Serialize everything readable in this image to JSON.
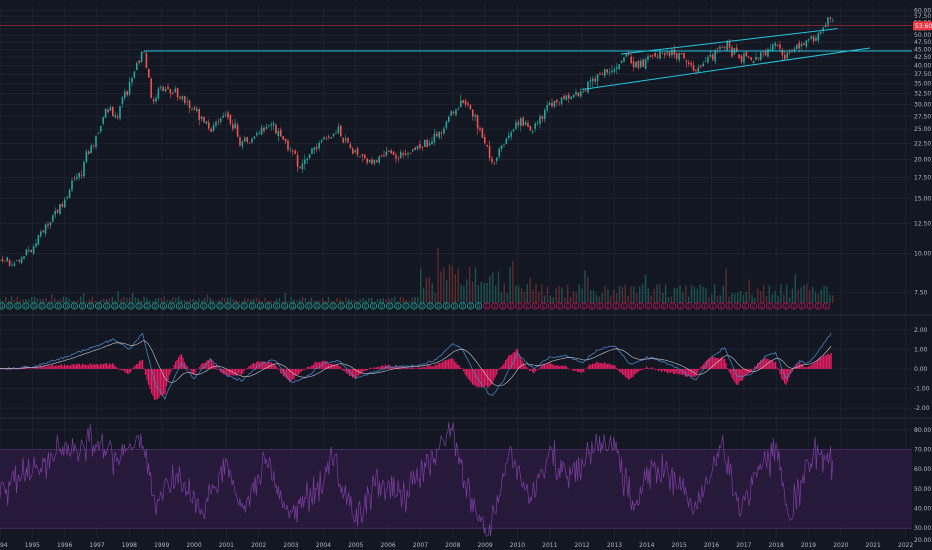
{
  "chart_data": [
    {
      "type": "candlestick",
      "panel": "price",
      "title": "",
      "xlabel": "",
      "ylabel": "",
      "y_scale": "log",
      "ylim": [
        6.5,
        62
      ],
      "y_ticks": [
        "7.50",
        "10.00",
        "12.50",
        "15.00",
        "17.50",
        "20.00",
        "22.50",
        "25.00",
        "27.50",
        "30.00",
        "32.50",
        "35.00",
        "37.50",
        "40.00",
        "42.50",
        "45.00",
        "47.50",
        "50.00",
        "52.50",
        "55.00",
        "57.50",
        "60.00"
      ],
      "last_price_label": "53.60",
      "xlim": [
        1994.0,
        2022.2
      ],
      "x_ticks": [
        "1994",
        "1995",
        "1996",
        "1997",
        "1998",
        "1999",
        "2000",
        "2001",
        "2002",
        "2003",
        "2004",
        "2005",
        "2006",
        "2007",
        "2008",
        "2009",
        "2010",
        "2011",
        "2012",
        "2013",
        "2014",
        "2015",
        "2016",
        "2017",
        "2018",
        "2019",
        "2020",
        "2021",
        "2022"
      ],
      "price_path": [
        {
          "x": 1994.0,
          "y": 9.6
        },
        {
          "x": 1994.5,
          "y": 9.3
        },
        {
          "x": 1995.0,
          "y": 10.4
        },
        {
          "x": 1995.5,
          "y": 12.2
        },
        {
          "x": 1996.0,
          "y": 15.0
        },
        {
          "x": 1996.5,
          "y": 18.5
        },
        {
          "x": 1997.0,
          "y": 24.0
        },
        {
          "x": 1997.3,
          "y": 29.0
        },
        {
          "x": 1997.6,
          "y": 27.0
        },
        {
          "x": 1998.0,
          "y": 35.0
        },
        {
          "x": 1998.3,
          "y": 41.0
        },
        {
          "x": 1998.45,
          "y": 44.5
        },
        {
          "x": 1998.7,
          "y": 30.0
        },
        {
          "x": 1999.0,
          "y": 34.0
        },
        {
          "x": 1999.5,
          "y": 32.0
        },
        {
          "x": 2000.0,
          "y": 29.0
        },
        {
          "x": 2000.5,
          "y": 25.0
        },
        {
          "x": 2001.0,
          "y": 28.0
        },
        {
          "x": 2001.5,
          "y": 22.5
        },
        {
          "x": 2002.0,
          "y": 24.0
        },
        {
          "x": 2002.4,
          "y": 26.5
        },
        {
          "x": 2003.0,
          "y": 21.0
        },
        {
          "x": 2003.3,
          "y": 19.5
        },
        {
          "x": 2004.0,
          "y": 23.0
        },
        {
          "x": 2004.5,
          "y": 24.5
        },
        {
          "x": 2005.0,
          "y": 20.5
        },
        {
          "x": 2005.5,
          "y": 20.0
        },
        {
          "x": 2006.0,
          "y": 21.0
        },
        {
          "x": 2006.5,
          "y": 20.5
        },
        {
          "x": 2007.0,
          "y": 22.0
        },
        {
          "x": 2007.5,
          "y": 24.0
        },
        {
          "x": 2008.0,
          "y": 28.0
        },
        {
          "x": 2008.3,
          "y": 31.5
        },
        {
          "x": 2008.7,
          "y": 27.0
        },
        {
          "x": 2009.1,
          "y": 21.0
        },
        {
          "x": 2009.3,
          "y": 19.5
        },
        {
          "x": 2009.7,
          "y": 24.0
        },
        {
          "x": 2010.0,
          "y": 27.0
        },
        {
          "x": 2010.5,
          "y": 25.0
        },
        {
          "x": 2011.0,
          "y": 30.0
        },
        {
          "x": 2011.5,
          "y": 31.5
        },
        {
          "x": 2012.0,
          "y": 33.5
        },
        {
          "x": 2012.5,
          "y": 37.5
        },
        {
          "x": 2013.0,
          "y": 39.0
        },
        {
          "x": 2013.3,
          "y": 43.0
        },
        {
          "x": 2013.7,
          "y": 40.0
        },
        {
          "x": 2014.0,
          "y": 42.0
        },
        {
          "x": 2014.5,
          "y": 44.0
        },
        {
          "x": 2015.0,
          "y": 42.5
        },
        {
          "x": 2015.5,
          "y": 39.0
        },
        {
          "x": 2016.0,
          "y": 43.0
        },
        {
          "x": 2016.4,
          "y": 47.0
        },
        {
          "x": 2016.8,
          "y": 43.0
        },
        {
          "x": 2017.2,
          "y": 41.0
        },
        {
          "x": 2017.7,
          "y": 45.0
        },
        {
          "x": 2018.0,
          "y": 47.0
        },
        {
          "x": 2018.3,
          "y": 43.0
        },
        {
          "x": 2018.7,
          "y": 46.0
        },
        {
          "x": 2019.0,
          "y": 48.0
        },
        {
          "x": 2019.2,
          "y": 47.5
        },
        {
          "x": 2019.4,
          "y": 52.0
        },
        {
          "x": 2019.6,
          "y": 57.0
        },
        {
          "x": 2019.75,
          "y": 55.5
        }
      ],
      "lines": [
        {
          "name": "resistance-horizontal",
          "x1": 1998.45,
          "y1": 44.5,
          "x2": 2022.2,
          "y2": 44.5,
          "color": "#26c6da"
        },
        {
          "name": "channel-upper",
          "x1": 2013.2,
          "y1": 43.5,
          "x2": 2019.9,
          "y2": 52.5,
          "color": "#26c6da"
        },
        {
          "name": "channel-lower",
          "x1": 2012.0,
          "y1": 33.5,
          "x2": 2020.9,
          "y2": 45.5,
          "color": "#26c6da"
        },
        {
          "name": "last-price",
          "x1": 1994.0,
          "y1": 53.6,
          "x2": 2022.2,
          "y2": 53.6,
          "color": "#f23645"
        }
      ],
      "volume_marker_letters": {
        "dividend": "D",
        "earnings": "E",
        "switch_year": 2008.9
      },
      "colors": {
        "up": "#26a69a",
        "down": "#ef5350",
        "accent": "#26c6da",
        "price_label": "#f23645"
      }
    },
    {
      "type": "histogram+line",
      "panel": "macd",
      "title": "",
      "ylim": [
        -2.4,
        2.6
      ],
      "y_ticks": [
        "2.00",
        "1.00",
        "0.00",
        "-1.00",
        "-2.00"
      ],
      "macd_line": [
        {
          "x": 1994.0,
          "y": 0.0
        },
        {
          "x": 1995.0,
          "y": 0.1
        },
        {
          "x": 1996.0,
          "y": 0.6
        },
        {
          "x": 1997.0,
          "y": 1.2
        },
        {
          "x": 1997.5,
          "y": 1.5
        },
        {
          "x": 1998.0,
          "y": 1.0
        },
        {
          "x": 1998.4,
          "y": 1.8
        },
        {
          "x": 1998.8,
          "y": -0.8
        },
        {
          "x": 1999.1,
          "y": -1.5
        },
        {
          "x": 1999.6,
          "y": 0.3
        },
        {
          "x": 2000.0,
          "y": -0.5
        },
        {
          "x": 2000.5,
          "y": 0.5
        },
        {
          "x": 2001.0,
          "y": -0.3
        },
        {
          "x": 2001.5,
          "y": -0.6
        },
        {
          "x": 2002.0,
          "y": 0.2
        },
        {
          "x": 2002.5,
          "y": 0.5
        },
        {
          "x": 2003.0,
          "y": -0.7
        },
        {
          "x": 2003.5,
          "y": -0.4
        },
        {
          "x": 2004.0,
          "y": 0.3
        },
        {
          "x": 2004.5,
          "y": 0.4
        },
        {
          "x": 2005.0,
          "y": -0.5
        },
        {
          "x": 2005.5,
          "y": -0.2
        },
        {
          "x": 2006.0,
          "y": 0.1
        },
        {
          "x": 2007.0,
          "y": 0.2
        },
        {
          "x": 2007.5,
          "y": 0.5
        },
        {
          "x": 2008.0,
          "y": 1.3
        },
        {
          "x": 2008.3,
          "y": 1.0
        },
        {
          "x": 2008.8,
          "y": -0.6
        },
        {
          "x": 2009.2,
          "y": -1.4
        },
        {
          "x": 2009.6,
          "y": -0.5
        },
        {
          "x": 2010.0,
          "y": 0.8
        },
        {
          "x": 2010.5,
          "y": 0.0
        },
        {
          "x": 2011.0,
          "y": 0.6
        },
        {
          "x": 2011.5,
          "y": 0.7
        },
        {
          "x": 2012.0,
          "y": 0.3
        },
        {
          "x": 2012.5,
          "y": 1.0
        },
        {
          "x": 2013.0,
          "y": 1.2
        },
        {
          "x": 2013.5,
          "y": 0.2
        },
        {
          "x": 2014.0,
          "y": 0.6
        },
        {
          "x": 2014.5,
          "y": 0.4
        },
        {
          "x": 2015.0,
          "y": 0.0
        },
        {
          "x": 2015.5,
          "y": -0.6
        },
        {
          "x": 2016.0,
          "y": 0.6
        },
        {
          "x": 2016.4,
          "y": 1.1
        },
        {
          "x": 2016.8,
          "y": -0.4
        },
        {
          "x": 2017.2,
          "y": -0.3
        },
        {
          "x": 2017.7,
          "y": 0.7
        },
        {
          "x": 2018.0,
          "y": 0.8
        },
        {
          "x": 2018.3,
          "y": -0.5
        },
        {
          "x": 2018.7,
          "y": 0.4
        },
        {
          "x": 2019.0,
          "y": 0.3
        },
        {
          "x": 2019.3,
          "y": 0.9
        },
        {
          "x": 2019.7,
          "y": 1.8
        }
      ],
      "colors": {
        "macd": "#4a7fbf",
        "signal": "#c7c9d0",
        "histogram": "#e91e63"
      }
    },
    {
      "type": "line",
      "panel": "rsi",
      "title": "",
      "ylim": [
        25,
        85
      ],
      "y_ticks": [
        "80.00",
        "70.00",
        "60.00",
        "50.00",
        "40.00",
        "30.00",
        "20.00"
      ],
      "band": [
        30,
        70
      ],
      "rsi_path": [
        {
          "x": 1994.0,
          "y": 50
        },
        {
          "x": 1995.0,
          "y": 60
        },
        {
          "x": 1996.0,
          "y": 70
        },
        {
          "x": 1996.7,
          "y": 76
        },
        {
          "x": 1997.5,
          "y": 66
        },
        {
          "x": 1998.4,
          "y": 75
        },
        {
          "x": 1998.8,
          "y": 42
        },
        {
          "x": 1999.5,
          "y": 58
        },
        {
          "x": 2000.2,
          "y": 40
        },
        {
          "x": 2001.0,
          "y": 62
        },
        {
          "x": 2001.5,
          "y": 38
        },
        {
          "x": 2002.2,
          "y": 64
        },
        {
          "x": 2003.0,
          "y": 36
        },
        {
          "x": 2003.6,
          "y": 46
        },
        {
          "x": 2004.3,
          "y": 65
        },
        {
          "x": 2005.0,
          "y": 32
        },
        {
          "x": 2005.6,
          "y": 52
        },
        {
          "x": 2006.5,
          "y": 48
        },
        {
          "x": 2007.3,
          "y": 65
        },
        {
          "x": 2008.0,
          "y": 80
        },
        {
          "x": 2008.6,
          "y": 40
        },
        {
          "x": 2009.1,
          "y": 28
        },
        {
          "x": 2009.8,
          "y": 70
        },
        {
          "x": 2010.4,
          "y": 42
        },
        {
          "x": 2011.0,
          "y": 68
        },
        {
          "x": 2011.6,
          "y": 55
        },
        {
          "x": 2012.4,
          "y": 72
        },
        {
          "x": 2013.0,
          "y": 74
        },
        {
          "x": 2013.6,
          "y": 40
        },
        {
          "x": 2014.2,
          "y": 62
        },
        {
          "x": 2015.0,
          "y": 55
        },
        {
          "x": 2015.5,
          "y": 38
        },
        {
          "x": 2016.3,
          "y": 72
        },
        {
          "x": 2016.9,
          "y": 40
        },
        {
          "x": 2017.5,
          "y": 60
        },
        {
          "x": 2018.0,
          "y": 72
        },
        {
          "x": 2018.4,
          "y": 35
        },
        {
          "x": 2018.9,
          "y": 60
        },
        {
          "x": 2019.3,
          "y": 68
        },
        {
          "x": 2019.6,
          "y": 64
        },
        {
          "x": 2019.75,
          "y": 62
        }
      ],
      "colors": {
        "line": "#7b3fa0",
        "band_fill": "#2a1a3d",
        "band_edge": "#5c3a7a"
      }
    }
  ]
}
